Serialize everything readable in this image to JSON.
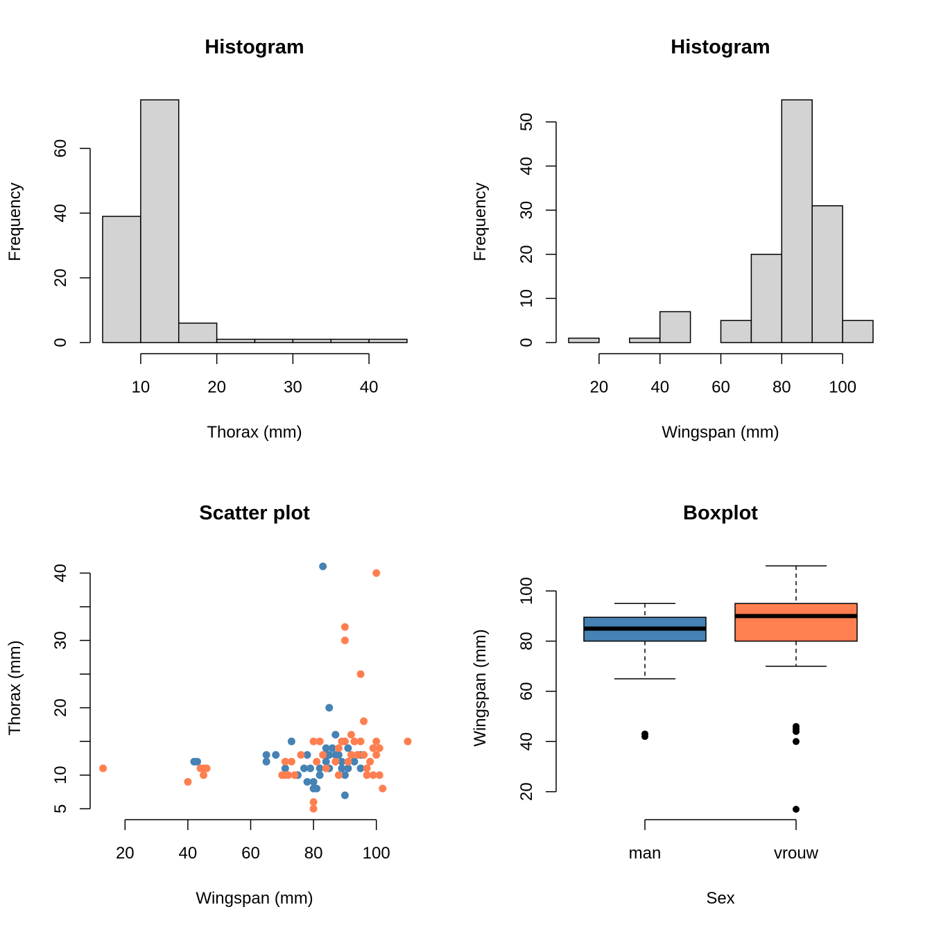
{
  "colors": {
    "man": "#4682b4",
    "vrouw": "#ff7f50",
    "hist_fill": "#d3d3d3",
    "median": "#000000"
  },
  "chart_data": [
    {
      "type": "bar",
      "subtype": "histogram",
      "title": "Histogram",
      "xlabel": "Thorax (mm)",
      "ylabel": "Frequency",
      "bins": [
        [
          5,
          10
        ],
        [
          10,
          15
        ],
        [
          15,
          20
        ],
        [
          20,
          25
        ],
        [
          25,
          30
        ],
        [
          30,
          35
        ],
        [
          35,
          40
        ],
        [
          40,
          45
        ]
      ],
      "values": [
        39,
        75,
        6,
        1,
        1,
        1,
        1,
        1
      ],
      "xticks": [
        10,
        20,
        30,
        40
      ],
      "yticks": [
        0,
        20,
        40,
        60
      ],
      "xlim": [
        5,
        45
      ],
      "ylim": [
        0,
        75
      ]
    },
    {
      "type": "bar",
      "subtype": "histogram",
      "title": "Histogram",
      "xlabel": "Wingspan (mm)",
      "ylabel": "Frequency",
      "bins": [
        [
          10,
          20
        ],
        [
          20,
          30
        ],
        [
          30,
          40
        ],
        [
          40,
          50
        ],
        [
          50,
          60
        ],
        [
          60,
          70
        ],
        [
          70,
          80
        ],
        [
          80,
          90
        ],
        [
          90,
          100
        ],
        [
          100,
          110
        ]
      ],
      "values": [
        1,
        0,
        1,
        7,
        0,
        5,
        20,
        55,
        31,
        5
      ],
      "xticks": [
        20,
        40,
        60,
        80,
        100
      ],
      "yticks": [
        0,
        10,
        20,
        30,
        40,
        50
      ],
      "xlim": [
        10,
        110
      ],
      "ylim": [
        0,
        55
      ]
    },
    {
      "type": "scatter",
      "title": "Scatter plot",
      "xlabel": "Wingspan (mm)",
      "ylabel": "Thorax (mm)",
      "xticks": [
        20,
        40,
        60,
        80,
        100
      ],
      "yticks": [
        5,
        10,
        20,
        30,
        40
      ],
      "xlim": [
        10,
        110
      ],
      "ylim": [
        4,
        42
      ],
      "series": [
        {
          "color": "#4682b4",
          "points": [
            [
              43,
              12
            ],
            [
              42,
              12
            ],
            [
              65,
              13
            ],
            [
              65,
              12
            ],
            [
              68,
              13
            ],
            [
              71,
              11
            ],
            [
              73,
              15
            ],
            [
              75,
              10
            ],
            [
              77,
              11
            ],
            [
              78,
              9
            ],
            [
              78,
              13
            ],
            [
              79,
              11
            ],
            [
              80,
              9
            ],
            [
              80,
              8
            ],
            [
              81,
              8
            ],
            [
              82,
              11
            ],
            [
              82,
              10
            ],
            [
              83,
              41
            ],
            [
              84,
              12
            ],
            [
              84,
              13
            ],
            [
              84,
              14
            ],
            [
              85,
              11
            ],
            [
              85,
              20
            ],
            [
              85,
              13
            ],
            [
              86,
              14
            ],
            [
              87,
              16
            ],
            [
              87,
              13
            ],
            [
              88,
              13
            ],
            [
              89,
              11
            ],
            [
              89,
              12
            ],
            [
              90,
              15
            ],
            [
              90,
              10
            ],
            [
              90,
              7
            ],
            [
              91,
              14
            ],
            [
              92,
              13
            ],
            [
              93,
              12
            ],
            [
              94,
              13
            ],
            [
              95,
              11
            ],
            [
              95,
              13
            ],
            [
              96,
              13
            ],
            [
              91,
              11
            ]
          ]
        },
        {
          "color": "#ff7f50",
          "points": [
            [
              13,
              11
            ],
            [
              40,
              9
            ],
            [
              44,
              11
            ],
            [
              45,
              10
            ],
            [
              45,
              11
            ],
            [
              46,
              11
            ],
            [
              70,
              10
            ],
            [
              71,
              12
            ],
            [
              71,
              10
            ],
            [
              72,
              10
            ],
            [
              73,
              12
            ],
            [
              74,
              10
            ],
            [
              76,
              13
            ],
            [
              80,
              15
            ],
            [
              80,
              6
            ],
            [
              80,
              5
            ],
            [
              81,
              12
            ],
            [
              82,
              15
            ],
            [
              83,
              13
            ],
            [
              84,
              11
            ],
            [
              87,
              12
            ],
            [
              88,
              14
            ],
            [
              88,
              10
            ],
            [
              89,
              15
            ],
            [
              90,
              32
            ],
            [
              90,
              30
            ],
            [
              90,
              15
            ],
            [
              91,
              12
            ],
            [
              92,
              16
            ],
            [
              92,
              13
            ],
            [
              93,
              15
            ],
            [
              94,
              13
            ],
            [
              95,
              15
            ],
            [
              95,
              25
            ],
            [
              96,
              18
            ],
            [
              96,
              13
            ],
            [
              97,
              11
            ],
            [
              97,
              10
            ],
            [
              98,
              12
            ],
            [
              99,
              14
            ],
            [
              99,
              10
            ],
            [
              100,
              40
            ],
            [
              100,
              13
            ],
            [
              100,
              15
            ],
            [
              101,
              14
            ],
            [
              101,
              10
            ],
            [
              102,
              8
            ],
            [
              110,
              15
            ]
          ]
        }
      ]
    },
    {
      "type": "boxplot",
      "title": "Boxplot",
      "xlabel": "Sex",
      "ylabel": "Wingspan (mm)",
      "categories": [
        "man",
        "vrouw"
      ],
      "yticks": [
        20,
        40,
        60,
        80,
        100
      ],
      "ylim": [
        13,
        110
      ],
      "boxes": [
        {
          "name": "man",
          "color": "#4682b4",
          "min": 65,
          "q1": 80,
          "median": 85,
          "q3": 89.5,
          "max": 95,
          "outliers": [
            42,
            43
          ]
        },
        {
          "name": "vrouw",
          "color": "#ff7f50",
          "min": 70,
          "q1": 80,
          "median": 90,
          "q3": 95,
          "max": 110,
          "outliers": [
            40,
            44,
            45,
            46,
            13
          ]
        }
      ]
    }
  ]
}
